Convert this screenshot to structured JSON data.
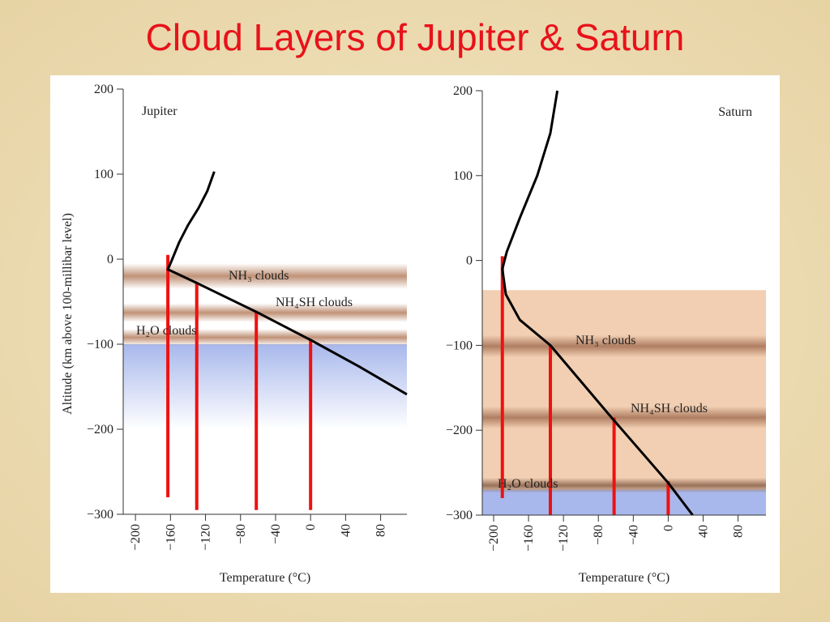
{
  "title": "Cloud Layers of Jupiter & Saturn",
  "chart_data": [
    {
      "type": "line",
      "title": "Jupiter",
      "x_label": "Temperature (°C)",
      "y_label": "Altitude (km above 100-millibar level)",
      "xlim": [
        -214,
        110
      ],
      "ylim": [
        -300,
        200
      ],
      "xticks": [
        {
          "value": -200,
          "label": "−200"
        },
        {
          "value": -160,
          "label": "−160"
        },
        {
          "value": -120,
          "label": "−120"
        },
        {
          "value": -80,
          "label": "−80"
        },
        {
          "value": -40,
          "label": "−40"
        },
        0,
        40,
        80
      ],
      "yticks": [
        {
          "value": -300,
          "label": "−300"
        },
        {
          "value": -200,
          "label": "−200"
        },
        {
          "value": -100,
          "label": "−100"
        },
        0,
        100,
        200
      ],
      "series": [
        {
          "color": "#000000",
          "x": [
            -110,
            -118,
            -128,
            -140,
            -150,
            -160,
            -163,
            -130,
            -62,
            0,
            55,
            110
          ],
          "values": [
            103,
            80,
            60,
            40,
            20,
            -5,
            -12,
            -28,
            -62,
            -95,
            -126,
            -159
          ]
        }
      ],
      "shading": [
        {
          "color": "#a8b8ec",
          "from": -100,
          "to": -200,
          "fade": true
        }
      ],
      "bands": [
        {
          "label": "NH₃ clouds",
          "color": "#b98668",
          "top": -5,
          "bottom": -35
        },
        {
          "label": "NH₄SH clouds",
          "color": "#b98668",
          "top": -52,
          "bottom": -74
        },
        {
          "label": "H₂O clouds",
          "color": "#b98668",
          "top": -82,
          "bottom": -102
        }
      ],
      "red_lines": [
        {
          "x": -163,
          "y": [
            -280,
            5
          ]
        },
        {
          "x": -130,
          "y": [
            -295,
            -28
          ]
        },
        {
          "x": -62,
          "y": [
            -295,
            -62
          ]
        },
        {
          "x": 0,
          "y": [
            -295,
            -95
          ]
        }
      ],
      "red_color": "#ee1111"
    },
    {
      "type": "line",
      "title": "Saturn",
      "x_label": "Temperature (°C)",
      "xlim": [
        -213,
        112
      ],
      "ylim": [
        -300,
        200
      ],
      "xticks": [
        {
          "value": -200,
          "label": "−200"
        },
        {
          "value": -160,
          "label": "−160"
        },
        {
          "value": -120,
          "label": "−120"
        },
        {
          "value": -80,
          "label": "−80"
        },
        {
          "value": -40,
          "label": "−40"
        },
        0,
        40,
        80
      ],
      "yticks": [
        {
          "value": -300,
          "label": "−300"
        },
        {
          "value": -200,
          "label": "−200"
        },
        {
          "value": -100,
          "label": "−100"
        },
        0,
        100,
        200
      ],
      "series": [
        {
          "color": "#000000",
          "x": [
            -127,
            -135,
            -150,
            -170,
            -185,
            -190,
            -186,
            -170,
            -135,
            -65,
            0,
            28
          ],
          "values": [
            200,
            150,
            100,
            50,
            10,
            -10,
            -40,
            -70,
            -100,
            -185,
            -262,
            -300
          ]
        }
      ],
      "shading": [
        {
          "color": "#f2cfb2",
          "from": -35,
          "to": -270,
          "fade": false
        },
        {
          "color": "#a8b8ec",
          "from": -270,
          "to": -300,
          "fade": false
        }
      ],
      "bands": [
        {
          "label": "NH₃ clouds",
          "color": "#a8755a",
          "top": -88,
          "bottom": -114
        },
        {
          "label": "NH₄SH clouds",
          "color": "#a8755a",
          "top": -172,
          "bottom": -198
        },
        {
          "label": "H₂O clouds",
          "color": "#8e6650",
          "top": -256,
          "bottom": -274
        }
      ],
      "red_lines": [
        {
          "x": -190,
          "y": [
            -280,
            5
          ]
        },
        {
          "x": -135,
          "y": [
            -300,
            -100
          ]
        },
        {
          "x": -62,
          "y": [
            -300,
            -185
          ]
        },
        {
          "x": 0,
          "y": [
            -300,
            -260
          ]
        }
      ],
      "red_color": "#ee1111"
    }
  ]
}
